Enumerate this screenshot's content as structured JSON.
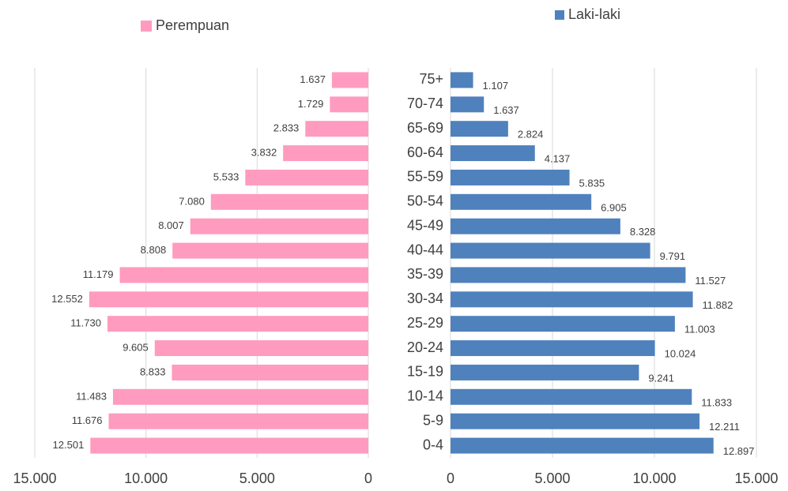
{
  "chart_data": [
    {
      "type": "bar",
      "orientation": "horizontal",
      "direction": "left",
      "series": [
        {
          "name": "Perempuan",
          "color": "#ff9bbf",
          "values": [
            12501,
            11676,
            11483,
            8833,
            9605,
            11730,
            12552,
            11179,
            8808,
            8007,
            7080,
            5533,
            3832,
            2833,
            1729,
            1637
          ],
          "value_labels": [
            "12.501",
            "11.676",
            "11.483",
            "8.833",
            "9.605",
            "11.730",
            "12.552",
            "11.179",
            "8.808",
            "8.007",
            "7.080",
            "5.533",
            "3.832",
            "2.833",
            "1.729",
            "1.637"
          ]
        }
      ],
      "xlim": [
        15000,
        0
      ],
      "xticks": [
        {
          "value": 15000,
          "label": "15.000"
        },
        {
          "value": 10000,
          "label": "10.000"
        },
        {
          "value": 5000,
          "label": "5.000"
        },
        0
      ],
      "grid": true
    },
    {
      "type": "bar",
      "orientation": "horizontal",
      "direction": "right",
      "categories": [
        "0-4",
        "5-9",
        "10-14",
        "15-19",
        "20-24",
        "25-29",
        "30-34",
        "35-39",
        "40-44",
        "45-49",
        "50-54",
        "55-59",
        "60-64",
        "65-69",
        "70-74",
        "75+"
      ],
      "series": [
        {
          "name": "Laki-laki",
          "color": "#4f81bd",
          "values": [
            12897,
            12211,
            11833,
            9241,
            10024,
            11003,
            11882,
            11527,
            9791,
            8328,
            6905,
            5835,
            4137,
            2824,
            1637,
            1107
          ],
          "value_labels": [
            "12.897",
            "12.211",
            "11.833",
            "9.241",
            "10.024",
            "11.003",
            "11.882",
            "11.527",
            "9.791",
            "8.328",
            "6.905",
            "5.835",
            "4.137",
            "2.824",
            "1.637",
            "1.107"
          ]
        }
      ],
      "xlim": [
        0,
        15000
      ],
      "xticks": [
        0,
        {
          "value": 5000,
          "label": "5.000"
        },
        {
          "value": 10000,
          "label": "10.000"
        },
        {
          "value": 15000,
          "label": "15.000"
        }
      ],
      "grid": true
    }
  ]
}
